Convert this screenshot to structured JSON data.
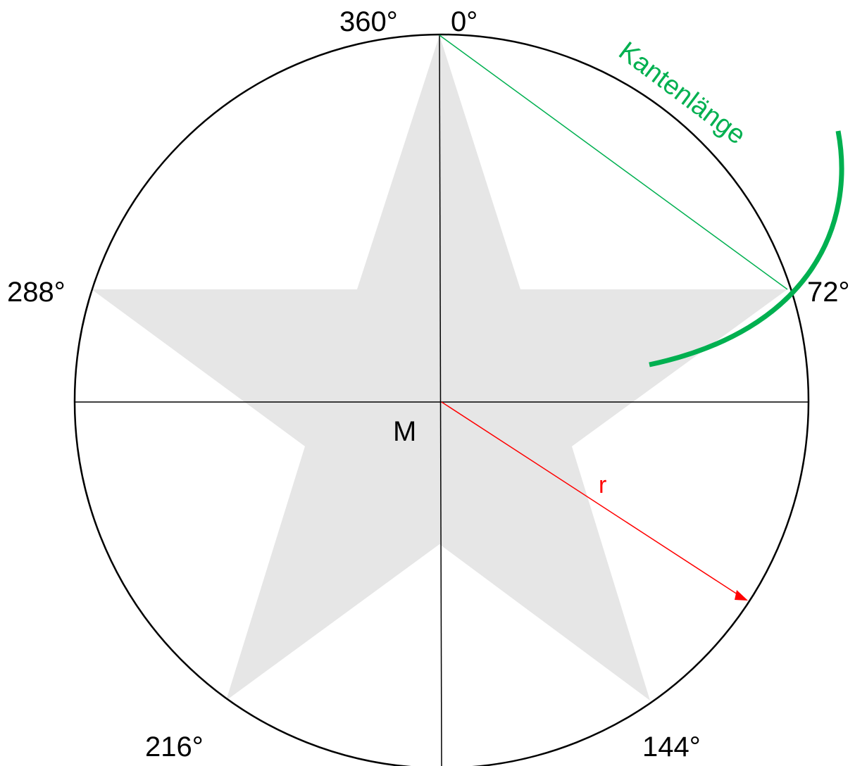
{
  "angle_labels": {
    "top_left": "360°",
    "top_right": "0°",
    "right": "72°",
    "bottom_right": "144°",
    "bottom_left": "216°",
    "left": "288°"
  },
  "center_label": "M",
  "radius_label": "r",
  "edge_label": "Kantenlänge",
  "colors": {
    "star_fill": "#e6e6e6",
    "outline": "#000000",
    "radius": "#ff0000",
    "edge": "#00b050"
  }
}
